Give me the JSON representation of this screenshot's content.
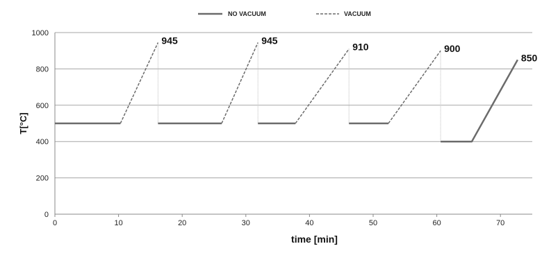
{
  "chart_data": {
    "type": "line",
    "title": "",
    "xlabel": "time [min]",
    "ylabel": "T[°C]",
    "xlim": [
      0,
      75
    ],
    "ylim": [
      0,
      1000
    ],
    "x_ticks": [
      0,
      10,
      20,
      30,
      40,
      50,
      60,
      70
    ],
    "y_ticks": [
      0,
      200,
      400,
      600,
      800,
      1000
    ],
    "grid": "horizontal",
    "legend_position": "top",
    "legend": [
      {
        "name": "NO VACUUM",
        "style": "solid"
      },
      {
        "name": "VACUUM",
        "style": "dashed"
      }
    ],
    "colors": {
      "series": "#6b6b6b",
      "grid": "#a6a6a6",
      "axis": "#888888",
      "drop_line": "#bdbdbd"
    },
    "series": [
      {
        "name": "NO VACUUM",
        "style": "solid",
        "points": [
          [
            0,
            500
          ],
          [
            10.3,
            500
          ]
        ]
      },
      {
        "name": "VACUUM",
        "style": "dashed",
        "points": [
          [
            10.3,
            500
          ],
          [
            16.2,
            945
          ]
        ]
      },
      {
        "name": "NO VACUUM",
        "style": "solid",
        "points": [
          [
            16.2,
            500
          ],
          [
            26.2,
            500
          ]
        ]
      },
      {
        "name": "VACUUM",
        "style": "dashed",
        "points": [
          [
            26.2,
            500
          ],
          [
            31.9,
            945
          ]
        ]
      },
      {
        "name": "NO VACUUM",
        "style": "solid",
        "points": [
          [
            31.9,
            500
          ],
          [
            37.8,
            500
          ]
        ]
      },
      {
        "name": "VACUUM",
        "style": "dashed",
        "points": [
          [
            37.8,
            500
          ],
          [
            46.2,
            910
          ]
        ]
      },
      {
        "name": "NO VACUUM",
        "style": "solid",
        "points": [
          [
            46.2,
            500
          ],
          [
            52.4,
            500
          ]
        ]
      },
      {
        "name": "VACUUM",
        "style": "dashed",
        "points": [
          [
            52.4,
            500
          ],
          [
            60.6,
            900
          ]
        ]
      },
      {
        "name": "NO VACUUM",
        "style": "solid",
        "points": [
          [
            60.6,
            400
          ],
          [
            65.5,
            400
          ],
          [
            72.7,
            850
          ]
        ]
      }
    ],
    "drop_lines": [
      {
        "x": 16.2,
        "y_top": 945,
        "y_bottom": 500
      },
      {
        "x": 31.9,
        "y_top": 945,
        "y_bottom": 500
      },
      {
        "x": 46.2,
        "y_top": 910,
        "y_bottom": 500
      },
      {
        "x": 60.6,
        "y_top": 900,
        "y_bottom": 400
      }
    ],
    "data_labels": [
      {
        "x": 16.2,
        "y": 945,
        "text": "945"
      },
      {
        "x": 31.9,
        "y": 945,
        "text": "945"
      },
      {
        "x": 46.2,
        "y": 910,
        "text": "910"
      },
      {
        "x": 60.6,
        "y": 900,
        "text": "900"
      },
      {
        "x": 72.7,
        "y": 850,
        "text": "850"
      }
    ]
  }
}
